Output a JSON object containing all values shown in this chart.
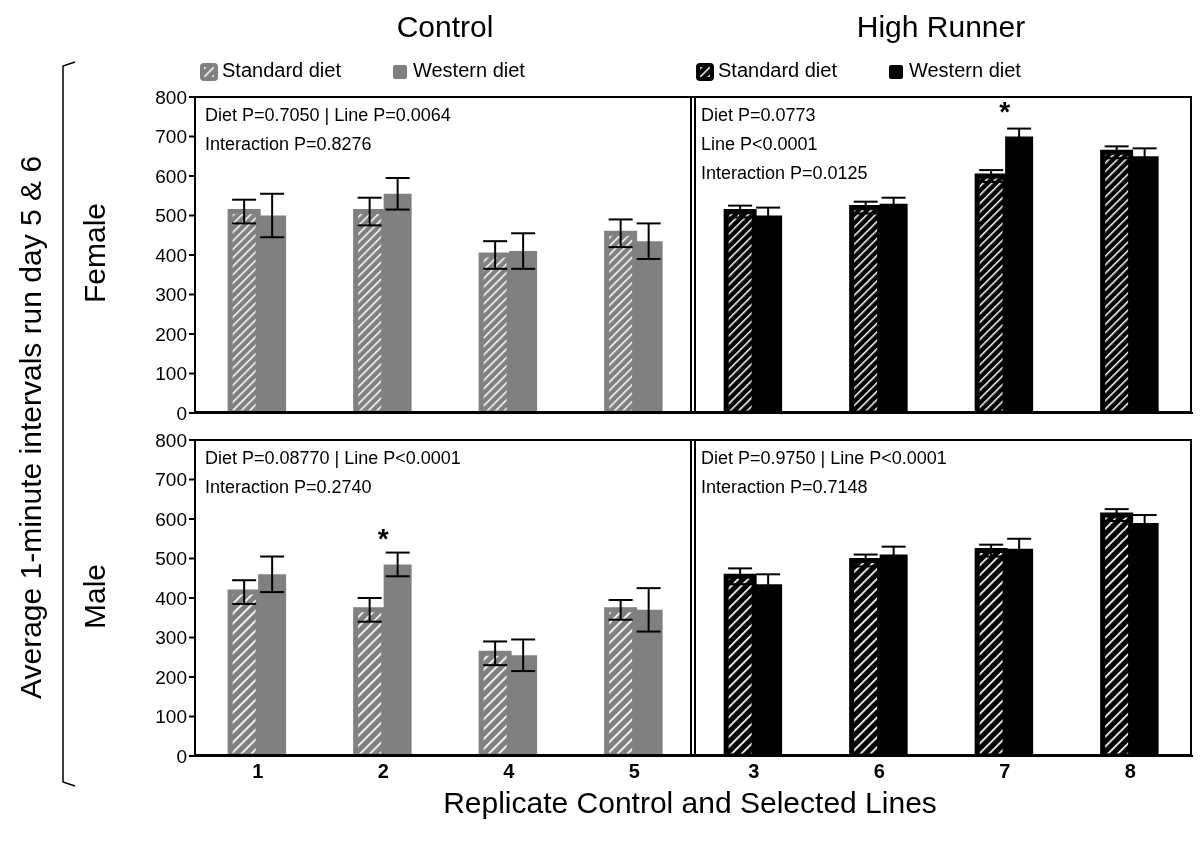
{
  "chart_data": [
    {
      "type": "bar",
      "title": "Control",
      "subtitle": "Female",
      "ylabel": "Average 1-minute intervals run day 5 & 6",
      "categories": [
        "1",
        "2",
        "4",
        "5"
      ],
      "legend": "top",
      "tick_labels": "y",
      "ylim": [
        0,
        800
      ],
      "yticks": [
        0,
        100,
        200,
        300,
        400,
        500,
        600,
        700,
        800
      ],
      "annotations": [
        "Diet P=0.7050 | Line P=0.0064",
        "Interaction P=0.8276"
      ],
      "series": [
        {
          "name": "Standard diet",
          "color": "#808080",
          "values": [
            510,
            510,
            400,
            455
          ],
          "errors": [
            30,
            35,
            35,
            35
          ]
        },
        {
          "name": "Western diet",
          "color": "#808080",
          "values": [
            500,
            555,
            410,
            435
          ],
          "errors": [
            55,
            40,
            45,
            45
          ]
        }
      ]
    },
    {
      "type": "bar",
      "title": "High Runner",
      "categories": [
        "3",
        "6",
        "7",
        "8"
      ],
      "legend": "top",
      "tick_labels": false,
      "ylim": [
        0,
        800
      ],
      "yticks": [
        0,
        100,
        200,
        300,
        400,
        500,
        600,
        700,
        800
      ],
      "annotations": [
        "Diet P=0.0773",
        "Line P<0.0001",
        "Interaction P=0.0125",
        {
          "text": "*",
          "x": "7",
          "y": 700
        }
      ],
      "series": [
        {
          "name": "Standard diet",
          "color": "#000000",
          "values": [
            510,
            520,
            600,
            660
          ],
          "errors": [
            15,
            15,
            15,
            15
          ]
        },
        {
          "name": "Western diet",
          "color": "#000000",
          "values": [
            500,
            530,
            700,
            650
          ],
          "errors": [
            20,
            15,
            20,
            20
          ]
        }
      ]
    },
    {
      "type": "bar",
      "subtitle": "Male",
      "xlabel": "Replicate Control and Selected Lines",
      "categories": [
        "1",
        "2",
        "4",
        "5"
      ],
      "ylim": [
        0,
        800
      ],
      "yticks": [
        0,
        100,
        200,
        300,
        400,
        500,
        600,
        700,
        800
      ],
      "annotations": [
        "Diet P=0.08770 | Line P<0.0001",
        "Interaction P=0.2740",
        {
          "text": "*",
          "x": "2",
          "y": 485
        }
      ],
      "series": [
        {
          "color": "#808080",
          "values": [
            415,
            370,
            260,
            370
          ],
          "errors": [
            30,
            30,
            30,
            25
          ]
        },
        {
          "color": "#808080",
          "values": [
            460,
            485,
            255,
            370
          ],
          "errors": [
            45,
            30,
            40,
            55
          ]
        }
      ]
    },
    {
      "type": "bar",
      "categories": [
        "3",
        "6",
        "7",
        "8"
      ],
      "tick_labels": "x",
      "ylim": [
        0,
        800
      ],
      "yticks": [
        0,
        100,
        200,
        300,
        400,
        500,
        600,
        700,
        800
      ],
      "annotations": [
        "Diet P=0.9750 | Line P<0.0001",
        "Interaction P=0.7148"
      ],
      "series": [
        {
          "color": "#000000",
          "values": [
            455,
            495,
            520,
            610
          ],
          "errors": [
            20,
            15,
            15,
            15
          ]
        },
        {
          "color": "#000000",
          "values": [
            435,
            510,
            525,
            590
          ],
          "errors": [
            25,
            20,
            25,
            20
          ]
        }
      ]
    }
  ]
}
